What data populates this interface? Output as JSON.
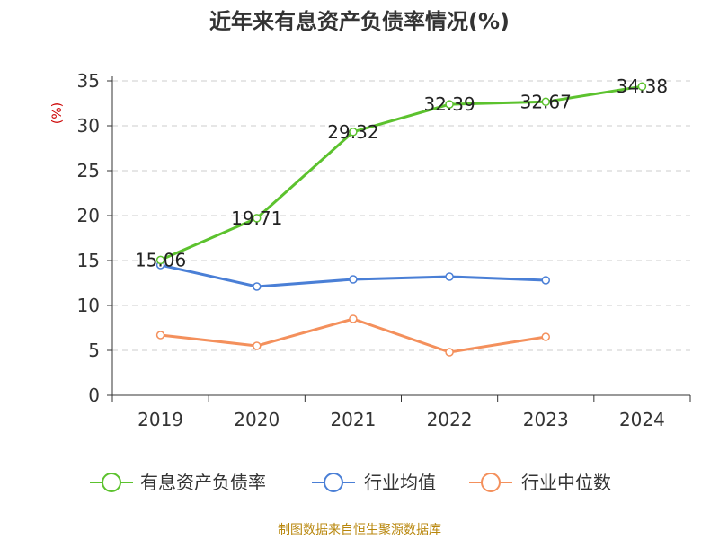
{
  "chart_data": {
    "type": "line",
    "title": "近年来有息资产负债率情况(%)",
    "ylabel": "(%)",
    "xlabel": "",
    "categories": [
      "2019",
      "2020",
      "2021",
      "2022",
      "2023",
      "2024"
    ],
    "ylim": [
      0,
      35
    ],
    "yticks": [
      0,
      5,
      10,
      15,
      20,
      25,
      30,
      35
    ],
    "grid": true,
    "legend_position": "bottom",
    "series": [
      {
        "name": "有息资产负债率",
        "color": "#5cc22e",
        "values": [
          15.06,
          19.71,
          29.32,
          32.39,
          32.67,
          34.38
        ],
        "labels": [
          "15.06",
          "19.71",
          "29.32",
          "32.39",
          "32.67",
          "34.38"
        ]
      },
      {
        "name": "行业均值",
        "color": "#4a7fd6",
        "values": [
          14.5,
          12.1,
          12.9,
          13.2,
          12.8,
          null
        ]
      },
      {
        "name": "行业中位数",
        "color": "#f4905c",
        "values": [
          6.7,
          5.5,
          8.5,
          4.8,
          6.5,
          null
        ]
      }
    ]
  },
  "source": "制图数据来自恒生聚源数据库"
}
